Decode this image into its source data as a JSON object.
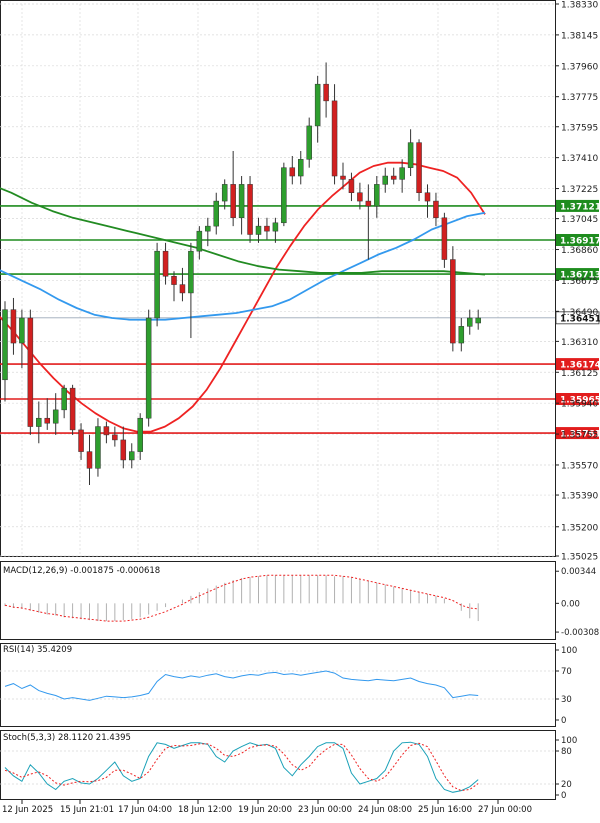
{
  "chart_data": {
    "type": "candlestick",
    "price_axis": {
      "ticks": [
        "1.38330",
        "1.38145",
        "1.37960",
        "1.37775",
        "1.37595",
        "1.37410",
        "1.37225",
        "1.37045",
        "1.36860",
        "1.36675",
        "1.36490",
        "1.36310",
        "1.36125",
        "1.35940",
        "1.35755",
        "1.35570",
        "1.35390",
        "1.35200",
        "1.35025"
      ],
      "range": [
        1.35025,
        1.3833
      ]
    },
    "time_axis": {
      "labels": [
        "12 Jun 2025",
        "15 Jun 21:01",
        "17 Jun 04:00",
        "18 Jun 12:00",
        "19 Jun 20:00",
        "23 Jun 00:00",
        "24 Jun 08:00",
        "25 Jun 16:00",
        "27 Jun 00:00"
      ]
    },
    "current_price": "1.36451",
    "horizontal_levels": [
      {
        "label": "1.37121",
        "value": 1.37121,
        "color": "#1e8c1e"
      },
      {
        "label": "1.36917",
        "value": 1.36917,
        "color": "#1e8c1e"
      },
      {
        "label": "1.36713",
        "value": 1.36713,
        "color": "#1e8c1e"
      },
      {
        "label": "1.36174",
        "value": 1.36174,
        "color": "#e21d1d"
      },
      {
        "label": "1.35965",
        "value": 1.35965,
        "color": "#e21d1d"
      },
      {
        "label": "1.35761",
        "value": 1.35761,
        "color": "#e21d1d"
      }
    ],
    "colors": {
      "up": "#2e9e2e",
      "down": "#d12020",
      "ma_fast": "#ee2222",
      "ma_mid": "#3399ee",
      "ma_slow": "#228b22",
      "grid": "#d9d9d9"
    },
    "candles": [
      [
        1.3608,
        1.3655,
        1.3595,
        1.365
      ],
      [
        1.365,
        1.3657,
        1.3623,
        1.363
      ],
      [
        1.363,
        1.365,
        1.3615,
        1.3645
      ],
      [
        1.3645,
        1.365,
        1.3575,
        1.358
      ],
      [
        1.358,
        1.3595,
        1.357,
        1.3585
      ],
      [
        1.3585,
        1.3597,
        1.3578,
        1.3582
      ],
      [
        1.3582,
        1.36,
        1.3575,
        1.359
      ],
      [
        1.359,
        1.3605,
        1.3585,
        1.3603
      ],
      [
        1.3603,
        1.3605,
        1.3575,
        1.3578
      ],
      [
        1.3578,
        1.3582,
        1.356,
        1.3565
      ],
      [
        1.3565,
        1.3575,
        1.3545,
        1.3555
      ],
      [
        1.3555,
        1.3585,
        1.355,
        1.358
      ],
      [
        1.358,
        1.3583,
        1.357,
        1.3575
      ],
      [
        1.3575,
        1.358,
        1.3568,
        1.3572
      ],
      [
        1.3572,
        1.358,
        1.3555,
        1.356
      ],
      [
        1.356,
        1.357,
        1.3555,
        1.3565
      ],
      [
        1.3565,
        1.3588,
        1.356,
        1.3585
      ],
      [
        1.3585,
        1.365,
        1.358,
        1.3645
      ],
      [
        1.3645,
        1.369,
        1.364,
        1.3685
      ],
      [
        1.3685,
        1.369,
        1.3665,
        1.367
      ],
      [
        1.367,
        1.3673,
        1.3655,
        1.3665
      ],
      [
        1.3665,
        1.3675,
        1.3655,
        1.366
      ],
      [
        1.366,
        1.369,
        1.3633,
        1.3685
      ],
      [
        1.3685,
        1.37,
        1.368,
        1.3697
      ],
      [
        1.3697,
        1.3705,
        1.3688,
        1.37
      ],
      [
        1.37,
        1.372,
        1.3695,
        1.3715
      ],
      [
        1.3715,
        1.3728,
        1.371,
        1.3725
      ],
      [
        1.3725,
        1.3745,
        1.37,
        1.3705
      ],
      [
        1.3705,
        1.373,
        1.3695,
        1.3725
      ],
      [
        1.3725,
        1.373,
        1.369,
        1.3695
      ],
      [
        1.3695,
        1.3705,
        1.369,
        1.37
      ],
      [
        1.37,
        1.3705,
        1.3692,
        1.3697
      ],
      [
        1.3697,
        1.3705,
        1.369,
        1.3702
      ],
      [
        1.3702,
        1.3738,
        1.37,
        1.3735
      ],
      [
        1.3735,
        1.3742,
        1.3725,
        1.373
      ],
      [
        1.373,
        1.3745,
        1.3725,
        1.374
      ],
      [
        1.374,
        1.3765,
        1.3735,
        1.376
      ],
      [
        1.376,
        1.379,
        1.375,
        1.3785
      ],
      [
        1.3785,
        1.3798,
        1.3765,
        1.3775
      ],
      [
        1.3775,
        1.3785,
        1.3725,
        1.373
      ],
      [
        1.373,
        1.3738,
        1.3722,
        1.3728
      ],
      [
        1.3728,
        1.3732,
        1.3715,
        1.372
      ],
      [
        1.372,
        1.3726,
        1.371,
        1.3715
      ],
      [
        1.3715,
        1.3725,
        1.368,
        1.3712
      ],
      [
        1.3712,
        1.373,
        1.3705,
        1.3725
      ],
      [
        1.3725,
        1.3735,
        1.372,
        1.373
      ],
      [
        1.373,
        1.3735,
        1.3725,
        1.3728
      ],
      [
        1.3728,
        1.374,
        1.372,
        1.3735
      ],
      [
        1.3735,
        1.3758,
        1.373,
        1.375
      ],
      [
        1.375,
        1.3752,
        1.3715,
        1.372
      ],
      [
        1.372,
        1.3725,
        1.3705,
        1.3715
      ],
      [
        1.3715,
        1.372,
        1.37,
        1.3705
      ],
      [
        1.3705,
        1.3708,
        1.3675,
        1.368
      ],
      [
        1.368,
        1.3688,
        1.3625,
        1.363
      ],
      [
        1.363,
        1.3645,
        1.3625,
        1.364
      ],
      [
        1.364,
        1.365,
        1.3635,
        1.3645
      ],
      [
        1.3642,
        1.365,
        1.3638,
        1.3645
      ]
    ],
    "moving_averages": [
      {
        "color": "#ee2222",
        "values": [
          1.3663,
          1.3655,
          1.3647,
          1.3638,
          1.3628,
          1.3618,
          1.3609,
          1.3601,
          1.3594,
          1.3588,
          1.3583,
          1.3579,
          1.3577,
          1.3577,
          1.358,
          1.3585,
          1.3592,
          1.3602,
          1.3615,
          1.363,
          1.3645,
          1.366,
          1.3675,
          1.3688,
          1.37,
          1.371,
          1.3718,
          1.3725,
          1.3732,
          1.3736,
          1.3738,
          1.3738,
          1.3737,
          1.3735,
          1.3733,
          1.3729,
          1.372,
          1.3707
        ]
      },
      {
        "color": "#3399ee",
        "values": [
          1.368,
          1.3677,
          1.3672,
          1.3667,
          1.3662,
          1.3656,
          1.3651,
          1.3647,
          1.3645,
          1.3644,
          1.3644,
          1.3644,
          1.3645,
          1.3646,
          1.3647,
          1.3648,
          1.365,
          1.3652,
          1.3656,
          1.3662,
          1.3668,
          1.3673,
          1.3678,
          1.3683,
          1.3687,
          1.3692,
          1.3698,
          1.3702,
          1.3706,
          1.3708
        ]
      },
      {
        "color": "#228b22",
        "values": [
          1.373,
          1.3725,
          1.372,
          1.3714,
          1.3709,
          1.3705,
          1.3702,
          1.3699,
          1.3696,
          1.3693,
          1.369,
          1.3687,
          1.3683,
          1.3679,
          1.3676,
          1.3674,
          1.3673,
          1.3672,
          1.3672,
          1.3672,
          1.3673,
          1.3673,
          1.3673,
          1.3673,
          1.3672,
          1.3671
        ]
      }
    ],
    "macd": {
      "label": "MACD(12,26,9) -0.001875 -0.000618",
      "ticks": [
        "0.00344",
        "0.00",
        "-0.00308"
      ],
      "range": [
        -0.0035,
        0.004
      ],
      "bar_color": "#b0b0b0",
      "signal_color": "#ee2222",
      "histogram": [
        -0.0003,
        -0.0005,
        -0.0006,
        -0.0008,
        -0.001,
        -0.0012,
        -0.0013,
        -0.0015,
        -0.0016,
        -0.0017,
        -0.0018,
        -0.0019,
        -0.0019,
        -0.0019,
        -0.0018,
        -0.0017,
        -0.0015,
        -0.0012,
        -0.0008,
        -0.0004,
        0.0,
        0.0004,
        0.0008,
        0.0012,
        0.0016,
        0.0019,
        0.0022,
        0.0025,
        0.0027,
        0.0028,
        0.0029,
        0.003,
        0.003,
        0.003,
        0.003,
        0.003,
        0.003,
        0.003,
        0.003,
        0.0029,
        0.0029,
        0.0028,
        0.0026,
        0.0024,
        0.0022,
        0.002,
        0.0018,
        0.0016,
        0.0014,
        0.0012,
        0.001,
        0.0008,
        0.0005,
        0.0,
        -0.0008,
        -0.0016,
        -0.0019
      ],
      "signal": [
        -0.0002,
        -0.0004,
        -0.0005,
        -0.0007,
        -0.0009,
        -0.0011,
        -0.0012,
        -0.0014,
        -0.0015,
        -0.0016,
        -0.0017,
        -0.0018,
        -0.0019,
        -0.0019,
        -0.0019,
        -0.0018,
        -0.0017,
        -0.0015,
        -0.0012,
        -0.0009,
        -0.0005,
        -0.0001,
        0.0004,
        0.0008,
        0.0012,
        0.0016,
        0.002,
        0.0023,
        0.0026,
        0.0028,
        0.0029,
        0.003,
        0.003,
        0.003,
        0.003,
        0.003,
        0.003,
        0.003,
        0.003,
        0.003,
        0.0029,
        0.0028,
        0.0026,
        0.0024,
        0.0022,
        0.002,
        0.0018,
        0.0016,
        0.0014,
        0.0012,
        0.001,
        0.0008,
        0.0006,
        0.0003,
        -0.0002,
        -0.0005,
        -0.0006
      ]
    },
    "rsi": {
      "label": "RSI(14) 35.4209",
      "ticks": [
        "100",
        "70",
        "30",
        "0"
      ],
      "range": [
        0,
        100
      ],
      "color": "#3399ee",
      "values": [
        48,
        52,
        45,
        50,
        42,
        38,
        35,
        30,
        32,
        30,
        28,
        31,
        34,
        33,
        32,
        33,
        35,
        38,
        55,
        65,
        62,
        60,
        63,
        61,
        64,
        66,
        62,
        60,
        63,
        65,
        64,
        67,
        68,
        65,
        66,
        64,
        66,
        68,
        70,
        67,
        60,
        58,
        57,
        56,
        58,
        57,
        56,
        58,
        60,
        55,
        52,
        50,
        46,
        32,
        34,
        36,
        35
      ]
    },
    "stochastic": {
      "label": "Stoch(5,3,3) 28.1120 21.4395",
      "ticks": [
        "100",
        "80",
        "20",
        "0"
      ],
      "range": [
        0,
        100
      ],
      "k_color": "#1aa1b8",
      "d_color": "#ee2222",
      "k": [
        50,
        35,
        25,
        55,
        40,
        20,
        10,
        25,
        30,
        22,
        20,
        30,
        45,
        60,
        35,
        25,
        30,
        70,
        95,
        92,
        85,
        90,
        95,
        95,
        92,
        70,
        60,
        80,
        88,
        95,
        90,
        92,
        85,
        50,
        35,
        55,
        70,
        88,
        95,
        95,
        85,
        40,
        20,
        25,
        30,
        45,
        80,
        95,
        96,
        92,
        70,
        30,
        10,
        5,
        8,
        15,
        28
      ],
      "d": [
        45,
        40,
        32,
        38,
        42,
        35,
        22,
        18,
        22,
        25,
        24,
        26,
        32,
        45,
        45,
        38,
        30,
        42,
        65,
        85,
        90,
        89,
        90,
        93,
        93,
        85,
        72,
        70,
        76,
        86,
        90,
        91,
        89,
        75,
        55,
        45,
        52,
        70,
        83,
        92,
        92,
        73,
        48,
        30,
        25,
        33,
        52,
        73,
        90,
        94,
        88,
        62,
        35,
        15,
        8,
        10,
        21
      ]
    }
  }
}
